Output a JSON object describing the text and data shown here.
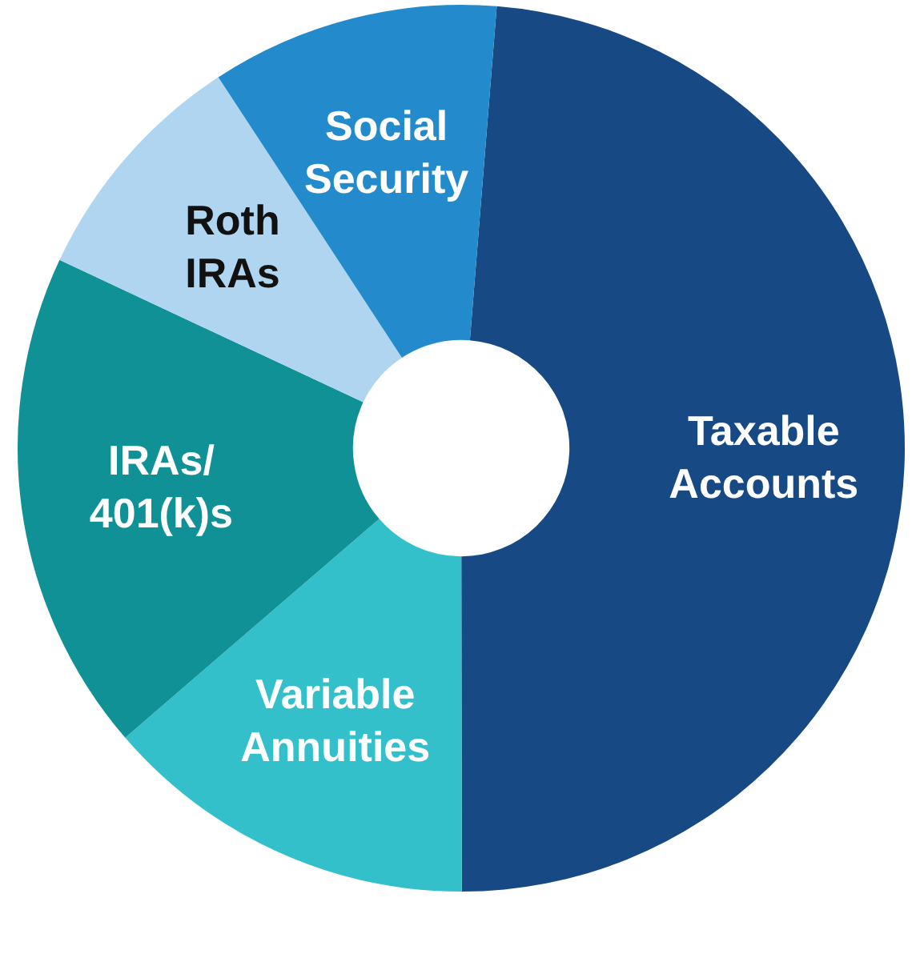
{
  "chart_data": {
    "type": "donut",
    "categories": [
      "Taxable\nAccounts",
      "Variable\nAnnuities",
      "IRAs/\n401(k)s",
      "Roth\nIRAs",
      "Social\nSecurity"
    ],
    "values": [
      48.7,
      13.7,
      18.3,
      8.8,
      10.5
    ],
    "colors": [
      "#174a85",
      "#34c0cb",
      "#0f9196",
      "#afd5f0",
      "#238bcc"
    ]
  }
}
